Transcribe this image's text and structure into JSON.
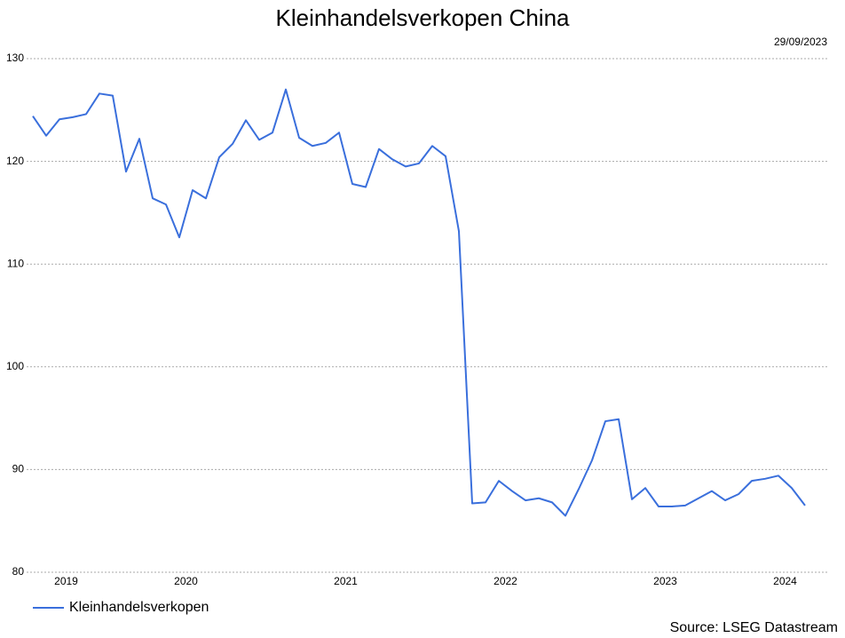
{
  "chart_data": {
    "type": "line",
    "title": "Kleinhandelsverkopen China",
    "date": "29/09/2023",
    "source": "Source: LSEG Datastream",
    "categories": [
      null,
      null,
      null,
      "2019",
      null,
      null,
      null,
      null,
      null,
      null,
      null,
      null,
      "2020",
      null,
      null,
      null,
      null,
      null,
      null,
      null,
      null,
      null,
      null,
      null,
      "2021",
      null,
      null,
      null,
      null,
      null,
      null,
      null,
      null,
      null,
      null,
      null,
      "2022",
      null,
      null,
      null,
      null,
      null,
      null,
      null,
      null,
      null,
      null,
      null,
      "2023",
      null,
      null,
      null,
      null,
      null,
      null,
      null,
      null,
      "2024",
      null
    ],
    "series": [
      {
        "name": "Kleinhandelsverkopen",
        "color": "#3a6fdc",
        "values": [
          124.4,
          122.5,
          124.1,
          124.3,
          124.6,
          126.6,
          126.4,
          119.0,
          122.2,
          116.4,
          115.8,
          112.6,
          117.2,
          116.4,
          120.4,
          121.7,
          124.0,
          122.1,
          122.8,
          127.0,
          122.3,
          121.5,
          121.8,
          122.8,
          117.8,
          117.5,
          121.2,
          120.2,
          119.5,
          119.8,
          121.5,
          120.5,
          113.2,
          86.7,
          86.8,
          88.9,
          87.9,
          87.0,
          87.2,
          86.8,
          85.5,
          88.1,
          90.9,
          94.7,
          94.9,
          87.1,
          88.2,
          86.4,
          86.4,
          86.5,
          87.2,
          87.9,
          87.0,
          87.6,
          88.9,
          89.1,
          89.4,
          88.2,
          86.5
        ]
      }
    ],
    "ylim": [
      80,
      130
    ],
    "yticks": [
      80,
      90,
      100,
      110,
      120,
      130
    ],
    "grid": true
  }
}
